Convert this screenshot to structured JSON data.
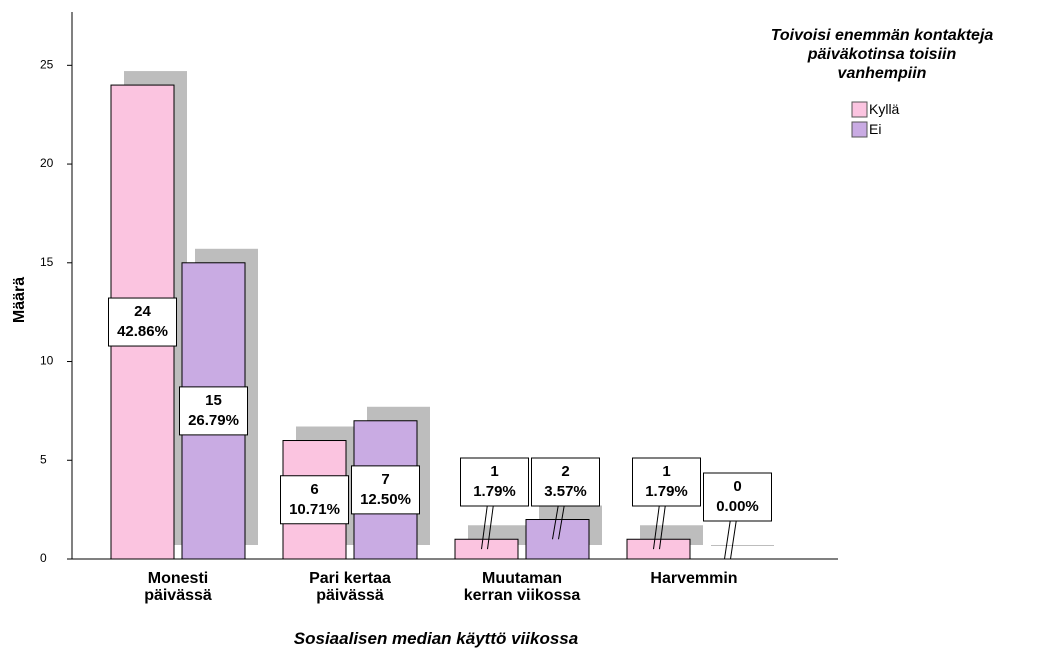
{
  "chart_data": {
    "type": "bar",
    "legend_title": "Toivoisi enemmän kontakteja\npäiväkotinsa toisiin\nvanhempiin",
    "xlabel": "Sosiaalisen median käyttö viikossa",
    "ylabel": "Määrä",
    "categories": [
      "Monesti\npäivässä",
      "Pari kertaa\npäivässä",
      "Muutaman\nkerran viikossa",
      "Harvemmin"
    ],
    "series": [
      {
        "name": "Kyllä",
        "color": "#fbc4e0",
        "values": [
          24,
          6,
          1,
          1
        ],
        "percent_labels": [
          "42.86%",
          "10.71%",
          "1.79%",
          "1.79%"
        ]
      },
      {
        "name": "Ei",
        "color": "#c9abe3",
        "values": [
          15,
          7,
          2,
          0
        ],
        "percent_labels": [
          "26.79%",
          "12.50%",
          "3.57%",
          "0.00%"
        ]
      }
    ],
    "ylim": [
      0,
      27.7
    ],
    "yticks": [
      0,
      5,
      10,
      15,
      20,
      25
    ],
    "legend": "upper right"
  }
}
